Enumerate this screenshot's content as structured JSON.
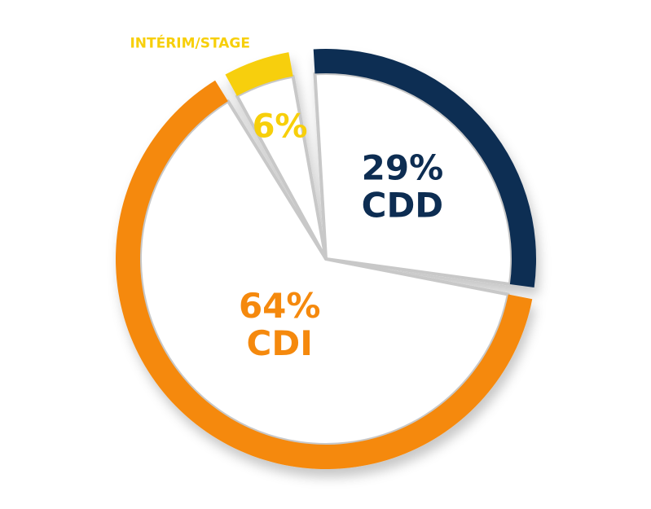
{
  "chart_data": {
    "type": "pie",
    "categories": [
      "CDD",
      "CDI",
      "INTÉRIM/STAGE"
    ],
    "values": [
      29,
      64,
      6
    ],
    "value_labels": [
      "29%",
      "64%",
      "6%"
    ],
    "colors": [
      "#0d2d52",
      "#f5890d",
      "#f7cf0a"
    ]
  }
}
